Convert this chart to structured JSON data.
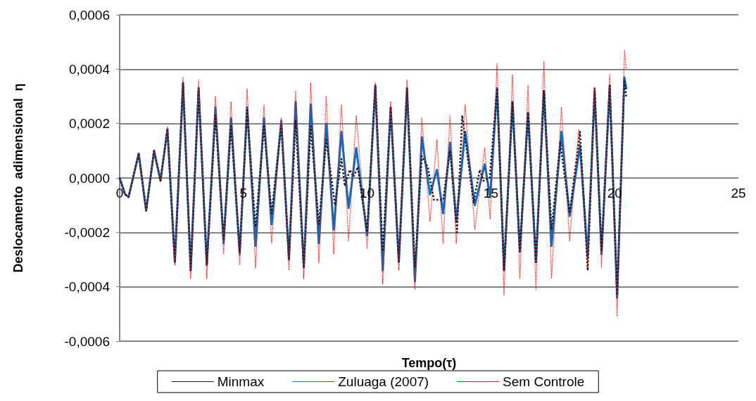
{
  "chart_data": {
    "type": "line",
    "xlabel": "Tempo(τ)",
    "ylabel": "Deslocamento  adimensional  η",
    "xlim": [
      0,
      25
    ],
    "xticks": [
      0,
      5,
      10,
      15,
      20,
      25
    ],
    "ylim": [
      -0.0006,
      0.0006
    ],
    "yticks": [
      {
        "value": -0.0006,
        "label": "-0,0006"
      },
      {
        "value": -0.0004,
        "label": "-0,0004"
      },
      {
        "value": -0.0002,
        "label": "-0,0002"
      },
      {
        "value": 0,
        "label": "0,0000"
      },
      {
        "value": 0.0002,
        "label": "0,0002"
      },
      {
        "value": 0.0004,
        "label": "0,0004"
      },
      {
        "value": 0.0006,
        "label": "0,0006"
      }
    ],
    "grid": "y",
    "legend": "bottom",
    "marker": "none",
    "series": [
      {
        "name": "Minmax",
        "color": "#1a1a1a",
        "line_style": "dotted",
        "x": [
          0,
          0.22,
          0.36,
          0.77,
          1.07,
          1.39,
          1.65,
          1.93,
          2.23,
          2.56,
          2.87,
          3.19,
          3.52,
          3.87,
          4.2,
          4.5,
          4.85,
          5.15,
          5.49,
          5.83,
          6.14,
          6.53,
          6.84,
          7.11,
          7.44,
          7.72,
          8.05,
          8.35,
          8.7,
          8.96,
          9.1,
          9.3,
          9.45,
          9.62,
          10.0,
          10.33,
          10.63,
          10.95,
          11.28,
          11.61,
          11.93,
          12.21,
          12.45,
          12.7,
          13.07,
          13.35,
          13.63,
          13.84,
          14.3,
          14.55,
          14.7,
          14.95,
          15.25,
          15.53,
          15.87,
          16.17,
          16.5,
          16.82,
          17.14,
          17.45,
          17.8,
          18.18,
          18.6,
          18.91,
          19.19,
          19.47,
          19.8,
          20.1,
          20.39,
          20.47
        ],
        "values": [
          0,
          -6e-05,
          -7e-05,
          9e-05,
          -0.00012,
          0.0001,
          -1e-05,
          0.00018,
          -0.00031,
          0.00035,
          -0.00034,
          0.00033,
          -0.00032,
          0.00023,
          -0.00023,
          0.00019,
          -0.00027,
          0.00025,
          -0.00018,
          0.00019,
          -0.00013,
          0.0002,
          -0.0003,
          0.00021,
          -0.00033,
          0.00019,
          -0.00017,
          0.00014,
          -0.0001,
          7e-05,
          -3e-05,
          3e-05,
          5e-06,
          4e-05,
          -0.0002,
          0.00034,
          -0.00027,
          0.00026,
          -0.00031,
          0.00033,
          -0.00033,
          8e-05,
          4e-05,
          -8e-05,
          -8e-05,
          0.0001,
          -0.0002,
          0.00023,
          -9e-05,
          3e-05,
          -1e-05,
          0,
          0.00033,
          -0.00034,
          0.00028,
          -0.00027,
          0.00024,
          -0.00031,
          0.00032,
          -0.00019,
          0.00013,
          -0.00013,
          0.00017,
          -0.00034,
          0.00033,
          -0.00027,
          0.00034,
          -0.00043,
          0.00036,
          0.0003
        ]
      },
      {
        "name": "Zuluaga (2007)",
        "color": "#0070c0",
        "line_style": "solid",
        "x": [
          0,
          0.22,
          0.36,
          0.77,
          1.07,
          1.39,
          1.65,
          1.93,
          2.23,
          2.56,
          2.87,
          3.19,
          3.52,
          3.87,
          4.2,
          4.5,
          4.85,
          5.15,
          5.49,
          5.83,
          6.14,
          6.53,
          6.84,
          7.11,
          7.44,
          7.72,
          8.05,
          8.35,
          8.65,
          8.96,
          9.25,
          9.56,
          10.0,
          10.33,
          10.63,
          10.95,
          11.28,
          11.61,
          11.93,
          12.21,
          12.54,
          12.82,
          13.07,
          13.35,
          13.6,
          13.96,
          14.35,
          14.75,
          14.97,
          15.25,
          15.53,
          15.87,
          16.17,
          16.5,
          16.82,
          17.14,
          17.45,
          17.85,
          18.18,
          18.6,
          18.91,
          19.19,
          19.47,
          19.8,
          20.1,
          20.39,
          20.47
        ],
        "values": [
          0,
          -6e-05,
          -7e-05,
          9e-05,
          -0.00012,
          0.0001,
          -1e-05,
          0.00018,
          -0.00031,
          0.00035,
          -0.00034,
          0.00033,
          -0.00032,
          0.00026,
          -0.00024,
          0.00022,
          -0.00028,
          0.00026,
          -0.00025,
          0.00022,
          -0.00017,
          0.00021,
          -0.0003,
          0.00028,
          -0.00033,
          0.00027,
          -0.00024,
          0.0002,
          -0.00019,
          0.00017,
          -0.00011,
          0.00011,
          -0.00021,
          0.00034,
          -0.00034,
          0.00026,
          -0.00031,
          0.00033,
          -0.00038,
          0.00015,
          -6e-05,
          3e-05,
          -0.00013,
          0.00013,
          -0.00016,
          0.00017,
          -0.0001,
          5e-05,
          -7e-05,
          0.00033,
          -0.00034,
          0.00028,
          -0.00027,
          0.00024,
          -0.00031,
          0.00032,
          -0.00025,
          0.00017,
          -0.00014,
          0.00012,
          -0.00029,
          0.00032,
          -0.00028,
          0.00034,
          -0.00044,
          0.00037,
          0.00033
        ]
      },
      {
        "name": "Sem Controle",
        "color": "#ff0000",
        "line_style": "dotted",
        "x": [
          0,
          0.22,
          0.36,
          0.77,
          1.07,
          1.39,
          1.65,
          1.93,
          2.23,
          2.56,
          2.87,
          3.19,
          3.52,
          3.87,
          4.2,
          4.5,
          4.85,
          5.15,
          5.49,
          5.83,
          6.14,
          6.53,
          6.84,
          7.11,
          7.44,
          7.72,
          8.05,
          8.35,
          8.65,
          8.96,
          9.25,
          9.56,
          10.0,
          10.33,
          10.63,
          10.95,
          11.28,
          11.61,
          11.93,
          12.21,
          12.54,
          12.82,
          13.07,
          13.35,
          13.6,
          13.96,
          14.35,
          14.75,
          14.97,
          15.25,
          15.53,
          15.87,
          16.17,
          16.5,
          16.82,
          17.14,
          17.45,
          17.85,
          18.18,
          18.55,
          18.91,
          19.19,
          19.47,
          19.8,
          20.1,
          20.4,
          20.47
        ],
        "values": [
          0,
          -6e-05,
          -7e-05,
          9e-05,
          -0.00012,
          0.0001,
          -1e-05,
          0.00019,
          -0.00032,
          0.00037,
          -0.00037,
          0.00036,
          -0.00037,
          0.0003,
          -0.00028,
          0.00028,
          -0.00032,
          0.00033,
          -0.00033,
          0.00027,
          -0.00024,
          0.00022,
          -0.00034,
          0.00032,
          -0.00037,
          0.00035,
          -0.00031,
          0.0003,
          -0.00028,
          0.00027,
          -0.00023,
          0.00023,
          -0.00026,
          0.00035,
          -0.00039,
          0.00028,
          -0.00034,
          0.00036,
          -0.00041,
          0.00022,
          -0.00016,
          0.00014,
          -0.00024,
          0.00023,
          -0.00024,
          0.00027,
          -0.00019,
          0.00011,
          -0.00015,
          0.00042,
          -0.00043,
          0.00038,
          -0.00037,
          0.00034,
          -0.00041,
          0.00043,
          -0.00037,
          0.00026,
          -0.00023,
          0.00018,
          -0.00033,
          0.00033,
          -0.00033,
          0.00038,
          -0.00051,
          0.00047,
          0.0004
        ]
      }
    ]
  }
}
